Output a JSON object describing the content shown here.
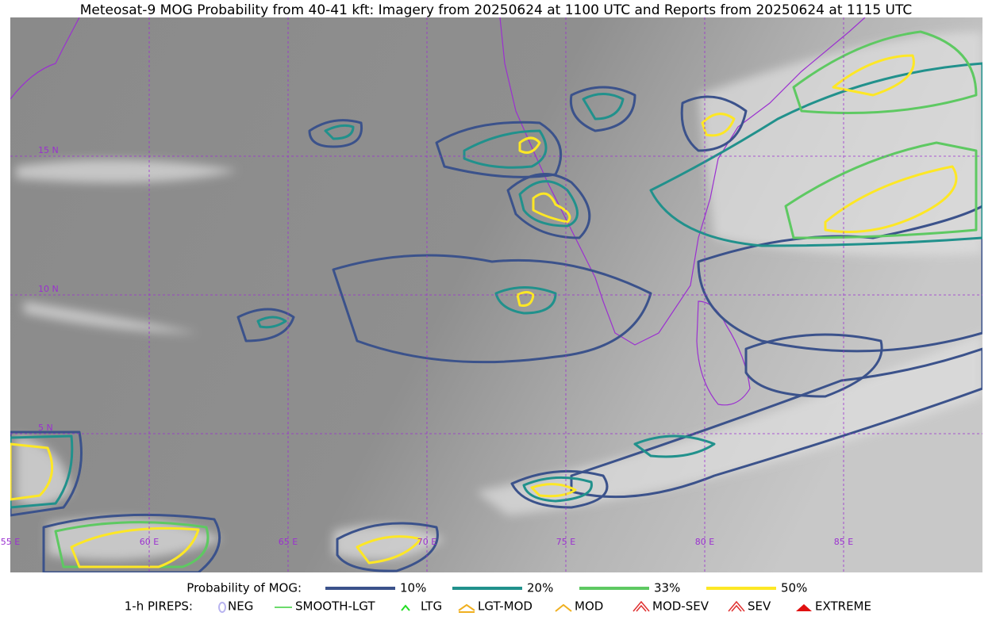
{
  "title": "Meteosat-9 MOG Probability from 40-41 kft: Imagery from 20250624 at 1100 UTC and Reports from 20250624 at 1115 UTC",
  "map": {
    "lat_labels": [
      "15 N",
      "10 N",
      "5 N"
    ],
    "lon_labels": [
      "55 E",
      "60 E",
      "65 E",
      "70 E",
      "75 E",
      "80 E",
      "85 E"
    ]
  },
  "legend": {
    "probability": {
      "label": "Probability of MOG:",
      "levels": [
        {
          "label": "10%",
          "color": "#3b528b"
        },
        {
          "label": "20%",
          "color": "#21918c"
        },
        {
          "label": "33%",
          "color": "#5ec962"
        },
        {
          "label": "50%",
          "color": "#fde725"
        }
      ]
    },
    "pireps": {
      "label": "1-h PIREPS:",
      "items": [
        "NEG",
        "SMOOTH-LGT",
        "LTG",
        "LGT-MOD",
        "MOD",
        "MOD-SEV",
        "SEV",
        "EXTREME"
      ]
    }
  }
}
